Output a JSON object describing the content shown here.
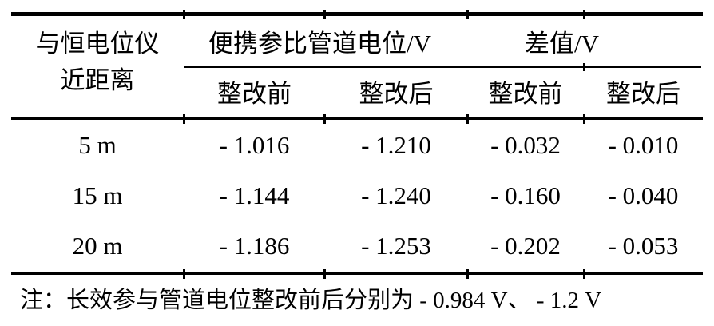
{
  "page": {
    "background_color": "#ffffff",
    "text_color": "#000000",
    "rule_color": "#000000"
  },
  "table": {
    "row_header": {
      "line1": "与恒电位仪",
      "line2": "近距离"
    },
    "column_groups": [
      {
        "label": "便携参比管道电位/V",
        "subcolumns": [
          "整改前",
          "整改后"
        ]
      },
      {
        "label": "差值/V",
        "subcolumns": [
          "整改前",
          "整改后"
        ]
      }
    ],
    "rows": [
      {
        "distance": "5 m",
        "values": [
          "- 1.016",
          "- 1.210",
          "- 0.032",
          "- 0.010"
        ]
      },
      {
        "distance": "15 m",
        "values": [
          "- 1.144",
          "- 1.240",
          "- 0.160",
          "- 0.040"
        ]
      },
      {
        "distance": "20 m",
        "values": [
          "- 1.186",
          "- 1.253",
          "- 0.202",
          "- 0.053"
        ]
      }
    ],
    "note": "注：长效参与管道电位整改前后分别为 - 0.984 V、 - 1.2 V"
  }
}
